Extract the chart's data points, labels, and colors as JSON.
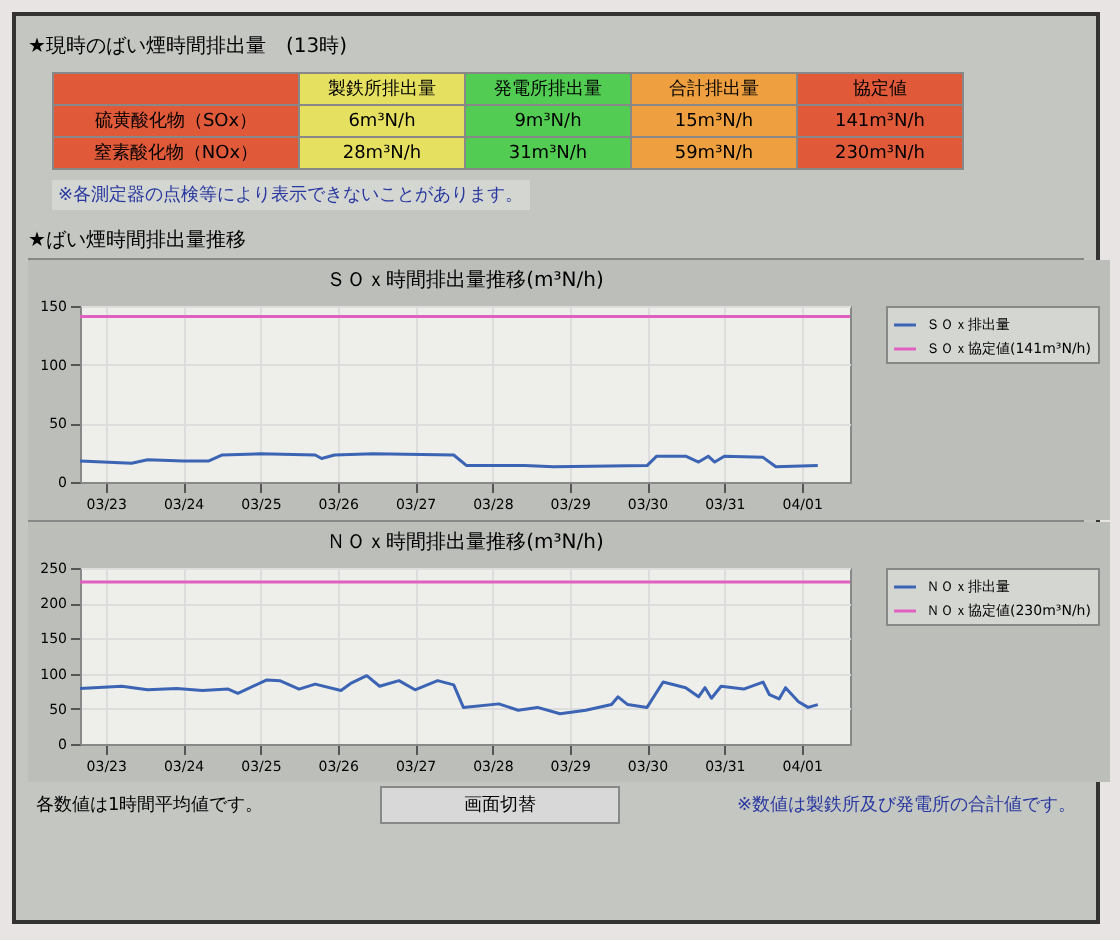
{
  "chart_data": [
    {
      "type": "other",
      "title": "★現時のばい煙時間排出量　(13時)",
      "categories": [
        null,
        "製鉄所排出量",
        "発電所排出量",
        "合計排出量",
        "協定値"
      ],
      "colors": [
        "#e05a3a",
        "#e6e060",
        "#52cc52",
        "#eea040",
        "#e05a3a"
      ],
      "y_categories": [
        "硫黄酸化物（SOx）",
        "窒素酸化物（NOx）"
      ],
      "cell_labels": [
        [
          "6m³N/h",
          "9m³N/h",
          "15m³N/h",
          "141m³N/h"
        ],
        [
          "28m³N/h",
          "31m³N/h",
          "59m³N/h",
          "230m³N/h"
        ]
      ],
      "annotations": [
        "※各測定器の点検等により表示できないことがあります。",
        "★ばい煙時間排出量推移"
      ]
    },
    {
      "type": "line",
      "title": "ＳＯｘ時間排出量推移(m³N/h)",
      "xlim": [
        "--03-22T16:00",
        "--04-01T15:00"
      ],
      "xticks": [
        {
          "value": "--03-23",
          "label": "03/23"
        },
        {
          "value": "--03-24",
          "label": "03/24"
        },
        {
          "value": "--03-25",
          "label": "03/25"
        },
        {
          "value": "--03-26",
          "label": "03/26"
        },
        {
          "value": "--03-27",
          "label": "03/27"
        },
        {
          "value": "--03-28",
          "label": "03/28"
        },
        {
          "value": "--03-29",
          "label": "03/29"
        },
        {
          "value": "--03-30",
          "label": "03/30"
        },
        {
          "value": "--03-31",
          "label": "03/31"
        },
        {
          "value": "--04-01",
          "label": "04/01"
        }
      ],
      "ylim": [
        0,
        150
      ],
      "yticks": [
        0,
        50,
        100,
        150
      ],
      "grid": true,
      "legend": "right",
      "series": [
        {
          "name": "ＳＯｘ排出量",
          "color": "#3c64b4",
          "x": [
            "--03-22T16:00",
            "--03-23T08:00",
            "--03-23T13:00",
            "--03-24T00:00",
            "--03-24T08:00",
            "--03-24T12:00",
            "--03-25T00:00",
            "--03-25T17:00",
            "--03-25T19:00",
            "--03-25T23:00",
            "--03-26T11:00",
            "--03-27T12:00",
            "--03-27T16:00",
            "--03-28T10:00",
            "--03-28T19:00",
            "--03-30T00:00",
            "--03-30T03:00",
            "--03-30T12:00",
            "--03-30T16:00",
            "--03-30T19:00",
            "--03-30T21:00",
            "--03-31T00:00",
            "--03-31T12:00",
            "--03-31T16:00",
            "--04-01T05:00"
          ],
          "values": [
            18,
            16,
            19,
            18,
            18,
            23,
            24,
            23,
            20,
            23,
            24,
            23,
            14,
            14,
            13,
            14,
            22,
            22,
            17,
            22,
            17,
            22,
            21,
            13,
            14
          ]
        },
        {
          "name": "ＳＯｘ協定値(141m³N/h)",
          "color": "#e060c0",
          "x": [
            "--03-22T16:00",
            "--04-01T15:00"
          ],
          "values": [
            141,
            141
          ]
        }
      ]
    },
    {
      "type": "line",
      "title": "ＮＯｘ時間排出量推移(m³N/h)",
      "xlim": [
        "--03-22T16:00",
        "--04-01T15:00"
      ],
      "xticks": [
        {
          "value": "--03-23",
          "label": "03/23"
        },
        {
          "value": "--03-24",
          "label": "03/24"
        },
        {
          "value": "--03-25",
          "label": "03/25"
        },
        {
          "value": "--03-26",
          "label": "03/26"
        },
        {
          "value": "--03-27",
          "label": "03/27"
        },
        {
          "value": "--03-28",
          "label": "03/28"
        },
        {
          "value": "--03-29",
          "label": "03/29"
        },
        {
          "value": "--03-30",
          "label": "03/30"
        },
        {
          "value": "--03-31",
          "label": "03/31"
        },
        {
          "value": "--04-01",
          "label": "04/01"
        }
      ],
      "ylim": [
        0,
        250
      ],
      "yticks": [
        0,
        50,
        100,
        150,
        200,
        250
      ],
      "grid": true,
      "legend": "right",
      "series": [
        {
          "name": "ＮＯｘ排出量",
          "color": "#3c64b4",
          "x": [
            "--03-22T16:00",
            "--03-23T05:00",
            "--03-23T13:00",
            "--03-23T22:00",
            "--03-24T06:00",
            "--03-24T14:00",
            "--03-24T17:00",
            "--03-25T02:00",
            "--03-25T06:00",
            "--03-25T12:00",
            "--03-25T17:00",
            "--03-26T01:00",
            "--03-26T04:00",
            "--03-26T09:00",
            "--03-26T13:00",
            "--03-26T19:00",
            "--03-27T00:00",
            "--03-27T07:00",
            "--03-27T12:00",
            "--03-27T15:00",
            "--03-28T02:00",
            "--03-28T08:00",
            "--03-28T14:00",
            "--03-28T21:00",
            "--03-29T05:00",
            "--03-29T13:00",
            "--03-29T15:00",
            "--03-29T18:00",
            "--03-30T00:00",
            "--03-30T05:00",
            "--03-30T12:00",
            "--03-30T16:00",
            "--03-30T18:00",
            "--03-30T20:00",
            "--03-30T23:00",
            "--03-31T06:00",
            "--03-31T12:00",
            "--03-31T14:00",
            "--03-31T17:00",
            "--03-31T19:00",
            "--03-31T23:00",
            "--04-01T02:00",
            "--04-01T05:00"
          ],
          "values": [
            79,
            82,
            77,
            79,
            76,
            78,
            72,
            91,
            90,
            78,
            85,
            76,
            86,
            97,
            82,
            90,
            77,
            90,
            84,
            52,
            57,
            48,
            52,
            43,
            48,
            56,
            67,
            56,
            52,
            88,
            80,
            67,
            80,
            65,
            82,
            78,
            88,
            70,
            64,
            80,
            60,
            52,
            56
          ]
        },
        {
          "name": "ＮＯｘ協定値(230m³N/h)",
          "color": "#e060c0",
          "x": [
            "--03-22T16:00",
            "--04-01T15:00"
          ],
          "values": [
            230,
            230
          ]
        }
      ],
      "annotations": [
        "各数値は1時間平均値です。",
        "画面切替",
        "※数値は製鉄所及び発電所の合計値です。"
      ]
    }
  ]
}
